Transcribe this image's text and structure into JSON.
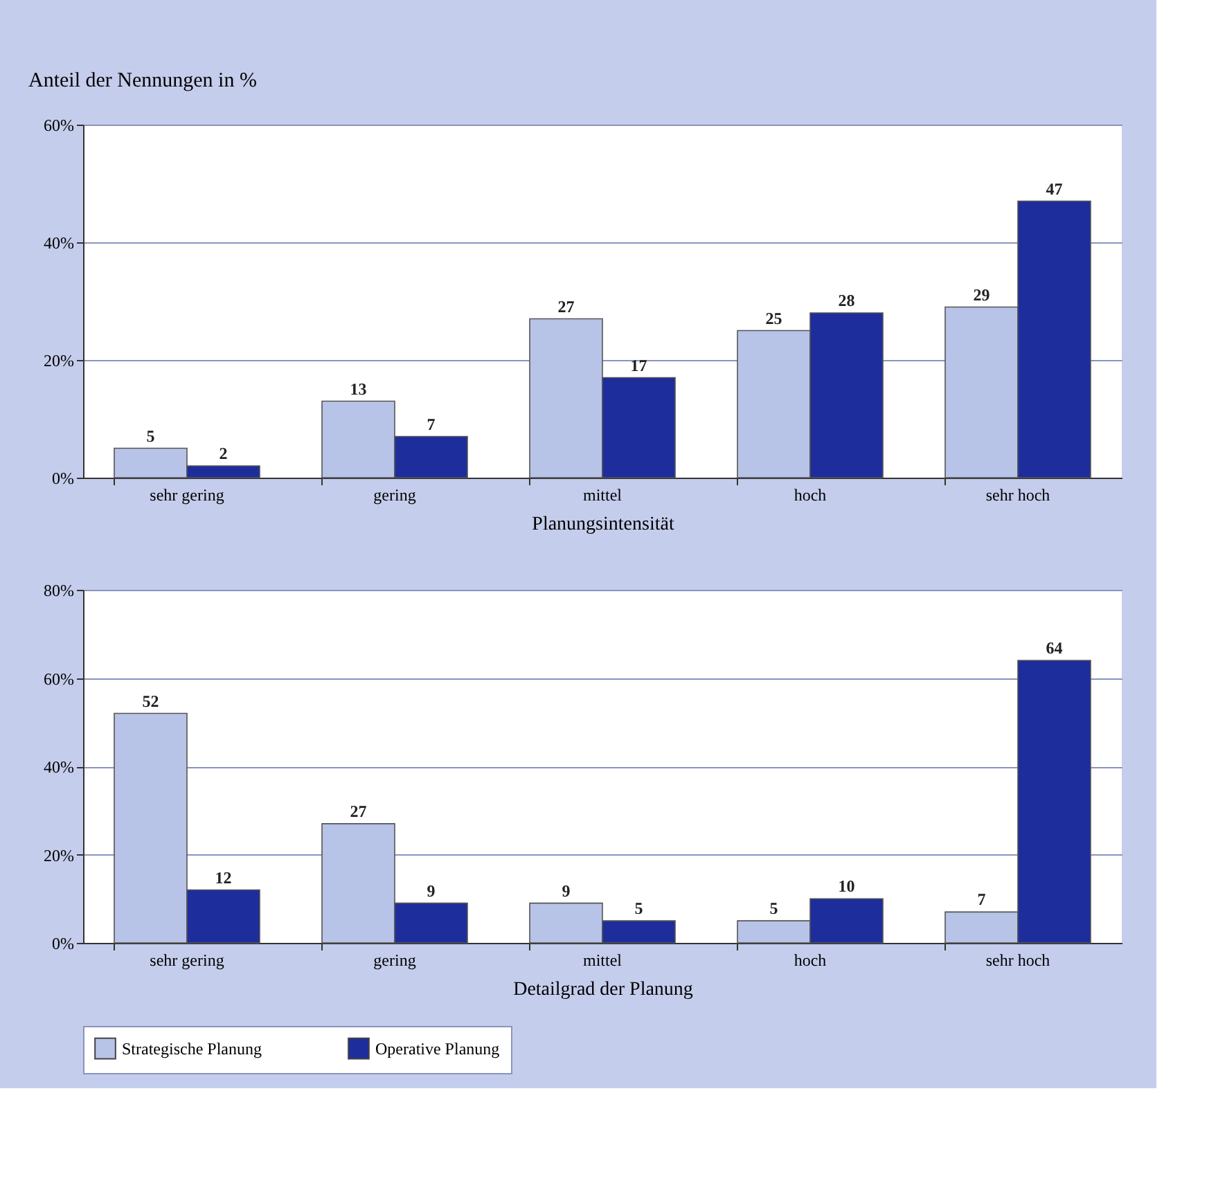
{
  "chart_data": [
    {
      "type": "bar",
      "ylabel": "Anteil der Nennungen in %",
      "xlabel": "Planungsintensität",
      "categories": [
        "sehr gering",
        "gering",
        "mittel",
        "hoch",
        "sehr hoch"
      ],
      "series": [
        {
          "color": "#b8c3e8",
          "values": [
            5,
            13,
            27,
            25,
            29
          ]
        },
        {
          "color": "#1e2d9c",
          "values": [
            2,
            7,
            17,
            28,
            47
          ]
        }
      ],
      "ylim": [
        0,
        60
      ],
      "yticks": [
        {
          "value": 0,
          "label": "0%"
        },
        {
          "value": 20,
          "label": "20%"
        },
        {
          "value": 40,
          "label": "40%"
        },
        {
          "value": 60,
          "label": "60%"
        }
      ],
      "grid": "y",
      "data_labels": true,
      "legend": false
    },
    {
      "type": "bar",
      "xlabel": "Detailgrad der Planung",
      "categories": [
        "sehr gering",
        "gering",
        "mittel",
        "hoch",
        "sehr hoch"
      ],
      "series": [
        {
          "name": "Strategische Planung",
          "color": "#b8c3e8",
          "values": [
            52,
            27,
            9,
            5,
            7
          ]
        },
        {
          "name": "Operative Planung",
          "color": "#1e2d9c",
          "values": [
            12,
            9,
            5,
            10,
            64
          ]
        }
      ],
      "ylim": [
        0,
        80
      ],
      "yticks": [
        {
          "value": 0,
          "label": "0%"
        },
        {
          "value": 20,
          "label": "20%"
        },
        {
          "value": 40,
          "label": "40%"
        },
        {
          "value": 60,
          "label": "60%"
        },
        {
          "value": 80,
          "label": "80%"
        }
      ],
      "grid": "y",
      "data_labels": true,
      "legend": "bottom"
    }
  ]
}
